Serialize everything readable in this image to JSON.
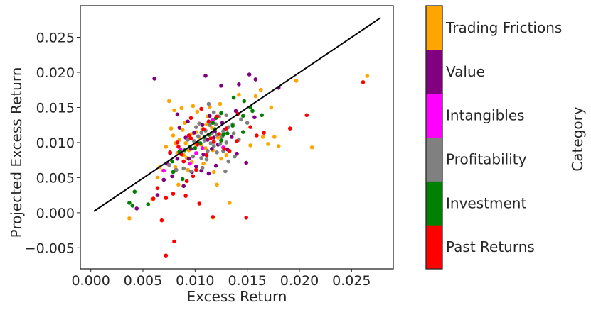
{
  "chart_data": {
    "type": "scatter",
    "xlabel": "Excess Return",
    "ylabel": "Projected Excess Return",
    "xlim": [
      -0.001,
      0.029
    ],
    "ylim": [
      -0.008,
      0.0295
    ],
    "xticks": [
      0.0,
      0.005,
      0.01,
      0.015,
      0.02,
      0.025
    ],
    "xtick_labels": [
      "0.000",
      "0.005",
      "0.010",
      "0.015",
      "0.020",
      "0.025"
    ],
    "yticks": [
      -0.005,
      0.0,
      0.005,
      0.01,
      0.015,
      0.02,
      0.025
    ],
    "ytick_labels": [
      "−0.005",
      "0.000",
      "0.005",
      "0.010",
      "0.015",
      "0.020",
      "0.025"
    ],
    "grid": false,
    "reference_line": {
      "x": [
        0.0003,
        0.0278
      ],
      "y": [
        0.0002,
        0.0278
      ],
      "color": "#000000"
    },
    "colorbar": {
      "title": "Category",
      "categories": [
        {
          "name": "Past Returns",
          "color": "#ff0000"
        },
        {
          "name": "Investment",
          "color": "#008000"
        },
        {
          "name": "Profitability",
          "color": "#808080"
        },
        {
          "name": "Intangibles",
          "color": "#ff00ff"
        },
        {
          "name": "Value",
          "color": "#800080"
        },
        {
          "name": "Trading Frictions",
          "color": "#ffa500"
        }
      ]
    },
    "series": [
      {
        "category": "Trading Frictions",
        "color": "#ffa500",
        "points": [
          [
            0.0265,
            0.0195
          ],
          [
            0.0197,
            0.0188
          ],
          [
            0.0212,
            0.0093
          ],
          [
            0.018,
            0.0095
          ],
          [
            0.0176,
            0.0108
          ],
          [
            0.017,
            0.0098
          ],
          [
            0.0165,
            0.0108
          ],
          [
            0.0173,
            0.015
          ],
          [
            0.0163,
            0.0175
          ],
          [
            0.0142,
            0.0168
          ],
          [
            0.0124,
            0.0155
          ],
          [
            0.0087,
            0.0149
          ],
          [
            0.0075,
            0.0159
          ],
          [
            0.008,
            0.0146
          ],
          [
            0.0098,
            0.0152
          ],
          [
            0.0102,
            0.0144
          ],
          [
            0.009,
            0.0128
          ],
          [
            0.0077,
            0.012
          ],
          [
            0.0072,
            0.0094
          ],
          [
            0.0064,
            0.005
          ],
          [
            0.0081,
            0.0065
          ],
          [
            0.0092,
            0.0078
          ],
          [
            0.01,
            0.0098
          ],
          [
            0.0108,
            0.007
          ],
          [
            0.0118,
            0.0058
          ],
          [
            0.0121,
            0.004
          ],
          [
            0.0133,
            0.0014
          ],
          [
            0.0117,
            -0.0007
          ],
          [
            0.0037,
            -0.0008
          ],
          [
            0.0059,
            0.0019
          ],
          [
            0.0066,
            0.0065
          ],
          [
            0.0084,
            0.004
          ],
          [
            0.0101,
            0.0115
          ],
          [
            0.011,
            0.0092
          ],
          [
            0.013,
            0.0082
          ],
          [
            0.0153,
            0.0096
          ],
          [
            0.0112,
            0.0137
          ],
          [
            0.0094,
            0.0089
          ],
          [
            0.0085,
            0.0104
          ],
          [
            0.0096,
            0.0112
          ],
          [
            0.0104,
            0.0107
          ],
          [
            0.0089,
            0.0082
          ],
          [
            0.0106,
            0.0097
          ],
          [
            0.0117,
            0.0089
          ],
          [
            0.0122,
            0.0107
          ],
          [
            0.0125,
            0.0077
          ],
          [
            0.0079,
            0.011
          ],
          [
            0.0093,
            0.0061
          ],
          [
            0.0069,
            0.006
          ],
          [
            0.0083,
            0.0085
          ],
          [
            0.0097,
            0.0072
          ],
          [
            0.0158,
            0.0166
          ],
          [
            0.0114,
            0.0151
          ],
          [
            0.0081,
            0.0099
          ],
          [
            0.0107,
            0.0119
          ],
          [
            0.0116,
            0.0121
          ],
          [
            0.0091,
            0.0099
          ],
          [
            0.0088,
            0.0118
          ],
          [
            0.0111,
            0.0126
          ]
        ]
      },
      {
        "category": "Value",
        "color": "#800080",
        "points": [
          [
            0.011,
            0.0195
          ],
          [
            0.0152,
            0.0197
          ],
          [
            0.0158,
            0.019
          ],
          [
            0.0125,
            0.0181
          ],
          [
            0.0142,
            0.0183
          ],
          [
            0.018,
            0.0178
          ],
          [
            0.0061,
            0.0191
          ],
          [
            0.0083,
            0.014
          ],
          [
            0.0107,
            0.0125
          ],
          [
            0.0099,
            0.0114
          ],
          [
            0.0118,
            0.0107
          ],
          [
            0.0128,
            0.0118
          ],
          [
            0.0096,
            0.0091
          ],
          [
            0.0116,
            0.0091
          ],
          [
            0.0094,
            0.0077
          ],
          [
            0.0083,
            0.0077
          ],
          [
            0.0073,
            0.007
          ],
          [
            0.0101,
            0.0066
          ],
          [
            0.0113,
            0.0056
          ],
          [
            0.0106,
            0.006
          ],
          [
            0.0078,
            0.0052
          ],
          [
            0.007,
            0.0047
          ],
          [
            0.0089,
            0.0038
          ],
          [
            0.012,
            0.0067
          ],
          [
            0.0149,
            0.0071
          ],
          [
            0.014,
            0.0084
          ],
          [
            0.0131,
            0.009
          ],
          [
            0.0157,
            0.0136
          ],
          [
            0.0139,
            0.0145
          ],
          [
            0.0093,
            0.013
          ],
          [
            0.0044,
            0.0006
          ],
          [
            0.0064,
            0.0025
          ],
          [
            0.0103,
            0.0099
          ],
          [
            0.0085,
            0.0121
          ],
          [
            0.0114,
            0.0138
          ],
          [
            0.0091,
            0.0107
          ],
          [
            0.0126,
            0.0128
          ],
          [
            0.0122,
            0.0097
          ],
          [
            0.0097,
            0.0058
          ],
          [
            0.0081,
            0.006
          ],
          [
            0.0108,
            0.0083
          ],
          [
            0.0112,
            0.0104
          ],
          [
            0.0119,
            0.0116
          ],
          [
            0.0135,
            0.0108
          ],
          [
            0.0076,
            0.0085
          ]
        ]
      },
      {
        "category": "Intangibles",
        "color": "#ff00ff",
        "points": [
          [
            0.007,
            0.006
          ],
          [
            0.0086,
            0.009
          ],
          [
            0.0107,
            0.0092
          ],
          [
            0.0127,
            0.0093
          ],
          [
            0.0101,
            0.0085
          ],
          [
            0.0117,
            0.0132
          ],
          [
            0.0095,
            0.007
          ]
        ]
      },
      {
        "category": "Profitability",
        "color": "#808080",
        "points": [
          [
            0.0113,
            0.0155
          ],
          [
            0.0144,
            0.0133
          ],
          [
            0.015,
            0.0128
          ],
          [
            0.0132,
            0.0122
          ],
          [
            0.0127,
            0.0116
          ],
          [
            0.012,
            0.0126
          ],
          [
            0.0116,
            0.0113
          ],
          [
            0.011,
            0.0117
          ],
          [
            0.0106,
            0.0114
          ],
          [
            0.0109,
            0.0103
          ],
          [
            0.0103,
            0.0109
          ],
          [
            0.0099,
            0.0102
          ],
          [
            0.0093,
            0.0104
          ],
          [
            0.0121,
            0.0111
          ],
          [
            0.0126,
            0.0108
          ],
          [
            0.013,
            0.01
          ],
          [
            0.0124,
            0.0098
          ],
          [
            0.0118,
            0.0095
          ],
          [
            0.0112,
            0.0088
          ],
          [
            0.0106,
            0.0078
          ],
          [
            0.0098,
            0.008
          ],
          [
            0.0132,
            0.0073
          ],
          [
            0.0138,
            0.008
          ],
          [
            0.0129,
            0.0059
          ],
          [
            0.0096,
            0.0059
          ],
          [
            0.0089,
            0.0063
          ],
          [
            0.0082,
            0.0061
          ],
          [
            0.0075,
            0.0068
          ],
          [
            0.0107,
            0.0064
          ],
          [
            0.0137,
            0.0113
          ],
          [
            0.0142,
            0.0104
          ],
          [
            0.0136,
            0.0126
          ],
          [
            0.0123,
            0.0137
          ],
          [
            0.0118,
            0.0143
          ],
          [
            0.013,
            0.0139
          ],
          [
            0.0114,
            0.0125
          ],
          [
            0.0101,
            0.0122
          ],
          [
            0.0104,
            0.0127
          ],
          [
            0.0115,
            0.0099
          ],
          [
            0.0121,
            0.0086
          ],
          [
            0.0111,
            0.0076
          ],
          [
            0.0127,
            0.0088
          ]
        ]
      },
      {
        "category": "Investment",
        "color": "#008000",
        "points": [
          [
            0.0153,
            0.015
          ],
          [
            0.0137,
            0.0164
          ],
          [
            0.0155,
            0.0145
          ],
          [
            0.0125,
            0.0142
          ],
          [
            0.0147,
            0.0159
          ],
          [
            0.0164,
            0.0139
          ],
          [
            0.0146,
            0.0138
          ],
          [
            0.0119,
            0.0119
          ],
          [
            0.0127,
            0.0111
          ],
          [
            0.0136,
            0.0124
          ],
          [
            0.0109,
            0.0108
          ],
          [
            0.01,
            0.0092
          ],
          [
            0.0095,
            0.0094
          ],
          [
            0.0085,
            0.0087
          ],
          [
            0.0078,
            0.0073
          ],
          [
            0.0079,
            0.0058
          ],
          [
            0.0088,
            0.0048
          ],
          [
            0.004,
            0.001
          ],
          [
            0.0042,
            0.003
          ],
          [
            0.0055,
            0.0012
          ],
          [
            0.0037,
            0.0014
          ],
          [
            0.0146,
            0.0115
          ],
          [
            0.0117,
            0.0128
          ],
          [
            0.0125,
            0.0103
          ],
          [
            0.0131,
            0.0113
          ],
          [
            0.0105,
            0.0099
          ],
          [
            0.0113,
            0.0111
          ],
          [
            0.009,
            0.0089
          ],
          [
            0.012,
            0.0135
          ]
        ]
      },
      {
        "category": "Past Returns",
        "color": "#ff0000",
        "points": [
          [
            0.0261,
            0.0186
          ],
          [
            0.0207,
            0.0139
          ],
          [
            0.0191,
            0.012
          ],
          [
            0.0166,
            0.0114
          ],
          [
            0.0159,
            0.011
          ],
          [
            0.0153,
            0.0122
          ],
          [
            0.0141,
            0.0141
          ],
          [
            0.0149,
            -0.0007
          ],
          [
            0.0117,
            -0.0006
          ],
          [
            0.0104,
            0.0013
          ],
          [
            0.0091,
            0.0024
          ],
          [
            0.0079,
            0.0027
          ],
          [
            0.0072,
            0.0021
          ],
          [
            0.0068,
            -0.0011
          ],
          [
            0.006,
            0.002
          ],
          [
            0.0064,
            0.0035
          ],
          [
            0.008,
            -0.0041
          ],
          [
            0.0072,
            -0.0061
          ],
          [
            0.0092,
            0.0045
          ],
          [
            0.0098,
            0.0052
          ],
          [
            0.0101,
            0.0061
          ],
          [
            0.0089,
            0.0073
          ],
          [
            0.0083,
            0.01
          ],
          [
            0.0096,
            0.0106
          ],
          [
            0.0108,
            0.0119
          ],
          [
            0.0113,
            0.013
          ],
          [
            0.0121,
            0.0137
          ],
          [
            0.0106,
            0.0148
          ],
          [
            0.0096,
            0.0135
          ],
          [
            0.0118,
            0.0101
          ],
          [
            0.0128,
            0.0091
          ],
          [
            0.0133,
            0.0088
          ],
          [
            0.014,
            0.0102
          ],
          [
            0.0111,
            0.0082
          ],
          [
            0.0087,
            0.0083
          ],
          [
            0.0102,
            0.0097
          ],
          [
            0.0123,
            0.0112
          ],
          [
            0.013,
            0.012
          ],
          [
            0.0115,
            0.0106
          ],
          [
            0.0094,
            0.011
          ],
          [
            0.0084,
            0.0094
          ],
          [
            0.0076,
            0.0086
          ]
        ]
      }
    ]
  }
}
